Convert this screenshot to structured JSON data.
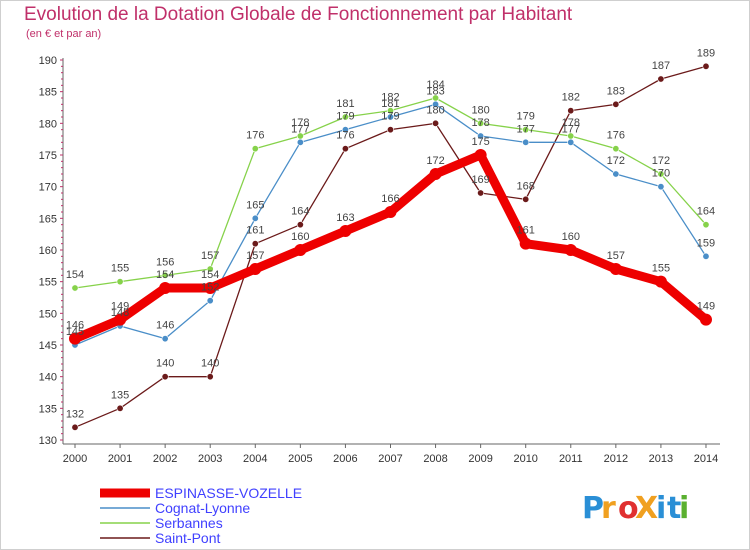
{
  "title": "Evolution de la Dotation Globale de Fonctionnement par Habitant",
  "subtitle": "(en € et par an)",
  "logo": {
    "text": "ProXiti",
    "letters": [
      {
        "ch": "P",
        "color": "#2a8fd6"
      },
      {
        "ch": "r",
        "color": "#f0a020"
      },
      {
        "ch": "o",
        "color": "#e03030"
      },
      {
        "ch": "X",
        "color": "#f0a020"
      },
      {
        "ch": "i",
        "color": "#2a8fd6"
      },
      {
        "ch": "t",
        "color": "#2a8fd6"
      },
      {
        "ch": "i",
        "color": "#5ab030"
      }
    ]
  },
  "chart_data": {
    "type": "line",
    "title": "Evolution de la Dotation Globale de Fonctionnement par Habitant",
    "subtitle": "(en € et par an)",
    "x": [
      2000,
      2001,
      2002,
      2003,
      2004,
      2005,
      2006,
      2007,
      2008,
      2009,
      2010,
      2011,
      2012,
      2013,
      2014
    ],
    "ylim": [
      130,
      190
    ],
    "yticks": [
      130,
      135,
      140,
      145,
      150,
      155,
      160,
      165,
      170,
      175,
      180,
      185,
      190
    ],
    "grid": false,
    "legend_position": "bottom-left",
    "series": [
      {
        "name": "Saint-Pont",
        "color": "#6b1a1a",
        "width": 1.3,
        "values": [
          132,
          135,
          140,
          140,
          161,
          164,
          176,
          179,
          180,
          169,
          168,
          182,
          183,
          187,
          189
        ]
      },
      {
        "name": "Serbannes",
        "color": "#86d24a",
        "width": 1.3,
        "values": [
          154,
          155,
          156,
          157,
          176,
          178,
          181,
          182,
          184,
          180,
          179,
          178,
          176,
          172,
          164
        ]
      },
      {
        "name": "Cognat-Lyonne",
        "color": "#4a8ec8",
        "width": 1.3,
        "values": [
          145,
          148,
          146,
          152,
          165,
          177,
          179,
          181,
          183,
          178,
          177,
          177,
          172,
          170,
          159
        ]
      },
      {
        "name": "ESPINASSE-VOZELLE",
        "color": "#ee0000",
        "width": 9,
        "values": [
          146,
          149,
          154,
          154,
          157,
          160,
          163,
          166,
          172,
          175,
          161,
          160,
          157,
          155,
          149
        ]
      }
    ],
    "legend_order": [
      "ESPINASSE-VOZELLE",
      "Cognat-Lyonne",
      "Serbannes",
      "Saint-Pont"
    ],
    "legend_colors": {
      "ESPINASSE-VOZELLE": "#4040ff",
      "Cognat-Lyonne": "#4040ff",
      "Serbannes": "#4040ff",
      "Saint-Pont": "#4040ff"
    }
  }
}
